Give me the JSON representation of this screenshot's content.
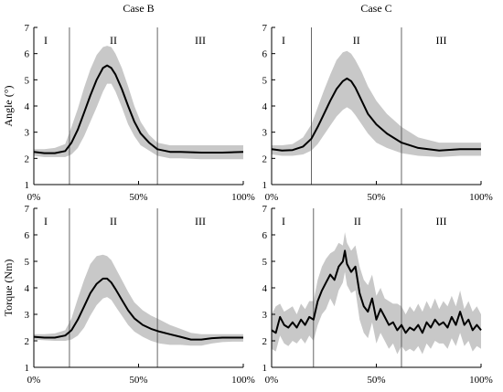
{
  "colors": {
    "band": "#c8c8c8",
    "mean_line": "#000000",
    "axis": "#000000",
    "phase_line": "#555555"
  },
  "chart_data": [
    {
      "type": "line",
      "title": "Case B",
      "ylabel": "Angle (°)",
      "xlabel": "",
      "ylim": [
        1,
        7
      ],
      "xlim": [
        0,
        100
      ],
      "yticks": [
        "1",
        "2",
        "3",
        "4",
        "5",
        "6",
        "7"
      ],
      "xticks": [
        "0%",
        "50%",
        "100%"
      ],
      "grid": false,
      "phase_boundaries": [
        17,
        59
      ],
      "phase_labels": [
        "I",
        "II",
        "III"
      ],
      "series": [
        {
          "x": [
            0,
            5,
            10,
            15,
            18,
            21,
            24,
            27,
            30,
            33,
            35,
            37,
            39,
            42,
            45,
            48,
            51,
            55,
            59,
            65,
            70,
            80,
            90,
            100
          ],
          "mean": [
            2.25,
            2.2,
            2.2,
            2.28,
            2.6,
            3.1,
            3.75,
            4.4,
            5.0,
            5.45,
            5.55,
            5.45,
            5.2,
            4.65,
            4.0,
            3.4,
            2.95,
            2.6,
            2.35,
            2.25,
            2.25,
            2.22,
            2.22,
            2.25
          ],
          "upper": [
            2.35,
            2.35,
            2.4,
            2.55,
            3.2,
            3.9,
            4.7,
            5.4,
            5.95,
            6.25,
            6.3,
            6.25,
            6.0,
            5.45,
            4.75,
            4.0,
            3.4,
            2.9,
            2.6,
            2.5,
            2.5,
            2.5,
            2.5,
            2.5
          ],
          "lower": [
            2.1,
            2.05,
            2.05,
            2.05,
            2.15,
            2.4,
            2.85,
            3.4,
            3.95,
            4.55,
            4.85,
            4.85,
            4.55,
            3.95,
            3.3,
            2.85,
            2.5,
            2.3,
            2.1,
            2.0,
            2.0,
            1.97,
            1.97,
            1.97
          ]
        }
      ]
    },
    {
      "type": "line",
      "title": "Case C",
      "ylabel": "",
      "xlabel": "",
      "ylim": [
        1,
        7
      ],
      "xlim": [
        0,
        100
      ],
      "yticks": [
        "1",
        "2",
        "3",
        "4",
        "5",
        "6",
        "7"
      ],
      "xticks": [
        "0%",
        "50%",
        "100%"
      ],
      "grid": false,
      "phase_boundaries": [
        19,
        62
      ],
      "phase_labels": [
        "I",
        "II",
        "III"
      ],
      "series": [
        {
          "x": [
            0,
            5,
            10,
            15,
            19,
            22,
            25,
            28,
            31,
            34,
            36,
            38,
            40,
            43,
            46,
            50,
            55,
            62,
            70,
            80,
            90,
            100
          ],
          "mean": [
            2.35,
            2.3,
            2.32,
            2.45,
            2.75,
            3.2,
            3.7,
            4.2,
            4.65,
            4.95,
            5.05,
            4.95,
            4.7,
            4.2,
            3.7,
            3.3,
            2.95,
            2.6,
            2.4,
            2.3,
            2.35,
            2.35
          ],
          "upper": [
            2.5,
            2.5,
            2.55,
            2.8,
            3.3,
            3.95,
            4.6,
            5.2,
            5.75,
            6.05,
            6.1,
            6.0,
            5.75,
            5.3,
            4.75,
            4.2,
            3.7,
            3.2,
            2.8,
            2.6,
            2.6,
            2.6
          ],
          "lower": [
            2.15,
            2.1,
            2.1,
            2.15,
            2.3,
            2.55,
            2.9,
            3.25,
            3.6,
            3.85,
            3.95,
            3.85,
            3.65,
            3.3,
            2.95,
            2.6,
            2.4,
            2.2,
            2.1,
            2.05,
            2.1,
            2.1
          ]
        }
      ]
    },
    {
      "type": "line",
      "title": "",
      "ylabel": "Torque (Nm)",
      "xlabel": "",
      "ylim": [
        1,
        7
      ],
      "xlim": [
        0,
        100
      ],
      "yticks": [
        "1",
        "2",
        "3",
        "4",
        "5",
        "6",
        "7"
      ],
      "xticks": [
        "0%",
        "50%",
        "100%"
      ],
      "grid": false,
      "phase_boundaries": [
        17,
        59
      ],
      "phase_labels": [
        "I",
        "II",
        "III"
      ],
      "series": [
        {
          "x": [
            0,
            5,
            10,
            15,
            18,
            21,
            24,
            27,
            30,
            33,
            35,
            37,
            39,
            42,
            45,
            48,
            52,
            56,
            60,
            65,
            70,
            75,
            80,
            85,
            90,
            95,
            100
          ],
          "mean": [
            2.15,
            2.12,
            2.12,
            2.2,
            2.4,
            2.8,
            3.3,
            3.8,
            4.15,
            4.35,
            4.35,
            4.2,
            3.95,
            3.55,
            3.15,
            2.85,
            2.6,
            2.45,
            2.35,
            2.25,
            2.15,
            2.05,
            2.05,
            2.1,
            2.12,
            2.12,
            2.12
          ],
          "upper": [
            2.25,
            2.25,
            2.28,
            2.4,
            2.85,
            3.6,
            4.3,
            4.9,
            5.2,
            5.25,
            5.2,
            5.05,
            4.75,
            4.3,
            3.85,
            3.45,
            3.15,
            2.95,
            2.8,
            2.6,
            2.45,
            2.3,
            2.25,
            2.25,
            2.25,
            2.25,
            2.25
          ],
          "lower": [
            2.05,
            2.02,
            2.0,
            2.0,
            2.05,
            2.2,
            2.5,
            2.95,
            3.35,
            3.6,
            3.65,
            3.55,
            3.3,
            2.95,
            2.6,
            2.35,
            2.15,
            2.0,
            1.9,
            1.85,
            1.85,
            1.82,
            1.82,
            1.9,
            1.95,
            1.97,
            1.97
          ]
        }
      ]
    },
    {
      "type": "line",
      "title": "",
      "ylabel": "",
      "xlabel": "",
      "ylim": [
        1,
        7
      ],
      "xlim": [
        0,
        100
      ],
      "yticks": [
        "1",
        "2",
        "3",
        "4",
        "5",
        "6",
        "7"
      ],
      "xticks": [
        "0%",
        "50%",
        "100%"
      ],
      "grid": false,
      "phase_boundaries": [
        20,
        62
      ],
      "phase_labels": [
        "I",
        "II",
        "III"
      ],
      "series": [
        {
          "x": [
            0,
            2,
            4,
            6,
            8,
            10,
            12,
            14,
            16,
            18,
            20,
            22,
            24,
            26,
            28,
            30,
            32,
            34,
            35,
            36,
            38,
            40,
            42,
            44,
            46,
            48,
            50,
            52,
            54,
            56,
            58,
            60,
            62,
            64,
            66,
            68,
            70,
            72,
            74,
            76,
            78,
            80,
            82,
            84,
            86,
            88,
            90,
            92,
            94,
            96,
            98,
            100
          ],
          "mean": [
            2.4,
            2.3,
            2.9,
            2.6,
            2.5,
            2.7,
            2.5,
            2.8,
            2.6,
            2.9,
            2.8,
            3.5,
            3.9,
            4.2,
            4.5,
            4.3,
            4.8,
            5.0,
            5.4,
            4.9,
            4.6,
            4.8,
            3.8,
            3.3,
            3.1,
            3.6,
            2.8,
            3.2,
            2.9,
            2.6,
            2.7,
            2.4,
            2.6,
            2.3,
            2.5,
            2.4,
            2.6,
            2.3,
            2.7,
            2.5,
            2.8,
            2.6,
            2.7,
            2.5,
            2.9,
            2.6,
            3.1,
            2.6,
            2.8,
            2.4,
            2.6,
            2.4
          ],
          "upper": [
            3.0,
            3.3,
            3.4,
            3.1,
            3.2,
            3.3,
            3.0,
            3.4,
            3.2,
            3.5,
            3.5,
            4.3,
            4.8,
            5.1,
            5.3,
            5.4,
            5.7,
            5.6,
            6.1,
            5.7,
            5.4,
            5.6,
            4.8,
            4.3,
            4.1,
            4.5,
            3.7,
            4.0,
            3.6,
            3.5,
            3.4,
            3.4,
            3.3,
            3.0,
            3.3,
            3.1,
            3.4,
            3.1,
            3.5,
            3.2,
            3.6,
            3.2,
            3.5,
            3.3,
            3.7,
            3.3,
            3.9,
            3.2,
            3.5,
            3.1,
            3.3,
            3.0
          ],
          "lower": [
            1.7,
            1.6,
            2.2,
            1.9,
            1.8,
            2.0,
            1.9,
            2.1,
            1.9,
            2.2,
            2.0,
            2.6,
            3.0,
            3.2,
            3.6,
            3.3,
            3.9,
            4.2,
            4.6,
            4.1,
            3.8,
            3.9,
            2.8,
            2.3,
            2.1,
            2.7,
            1.9,
            2.3,
            2.0,
            1.7,
            1.9,
            1.5,
            1.8,
            1.6,
            1.7,
            1.6,
            1.8,
            1.5,
            1.9,
            1.7,
            2.0,
            1.9,
            1.9,
            1.7,
            2.1,
            1.8,
            2.3,
            1.8,
            2.0,
            1.6,
            1.8,
            1.7
          ]
        }
      ]
    }
  ]
}
